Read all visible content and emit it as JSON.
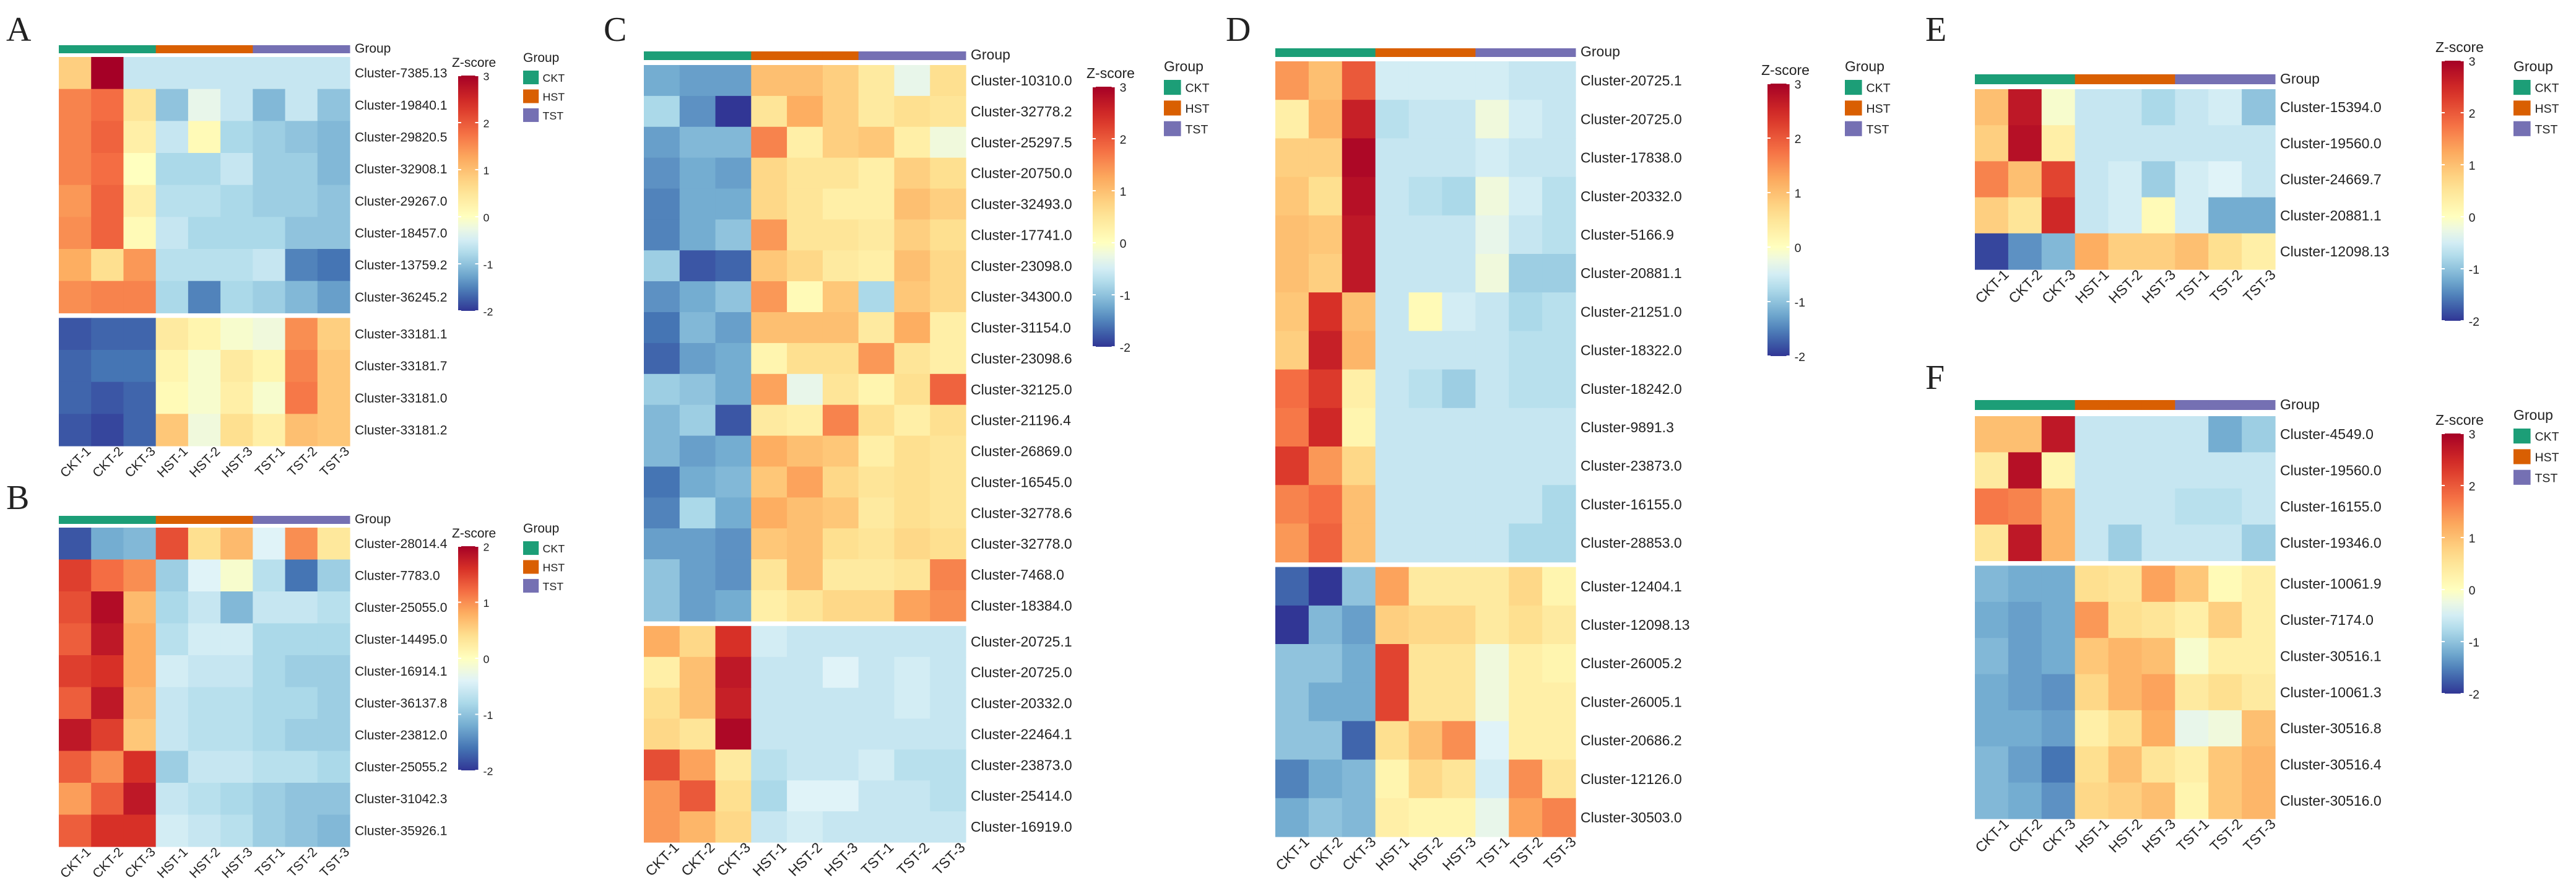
{
  "legend_common": {
    "zscore_title": "Z-score",
    "group_title": "Group",
    "groups": [
      "CKT",
      "HST",
      "TST"
    ],
    "group_colors": [
      "#1c9e77",
      "#d95f02",
      "#7570b3"
    ],
    "track_label": "Group"
  },
  "samples": [
    "CKT-1",
    "CKT-2",
    "CKT-3",
    "HST-1",
    "HST-2",
    "HST-3",
    "TST-1",
    "TST-2",
    "TST-3"
  ],
  "chart_data": [
    {
      "type": "heatmap",
      "panel": "A",
      "zmin": -2,
      "zmax": 3,
      "ticks": [
        -2,
        -1,
        0,
        1,
        2,
        3
      ],
      "rows": [
        "Cluster-7385.13",
        "Cluster-19840.1",
        "Cluster-29820.5",
        "Cluster-32908.1",
        "Cluster-29267.0",
        "Cluster-18457.0",
        "Cluster-13759.2",
        "Cluster-36245.2",
        "Cluster-33181.1",
        "Cluster-33181.7",
        "Cluster-33181.0",
        "Cluster-33181.2"
      ],
      "gaps_after": [
        7
      ],
      "values": [
        [
          0.8,
          3.0,
          -0.6,
          -0.6,
          -0.6,
          -0.6,
          -0.6,
          -0.6,
          -0.6
        ],
        [
          1.6,
          1.8,
          0.5,
          -1.0,
          -0.3,
          -0.6,
          -1.1,
          -0.6,
          -1.0
        ],
        [
          1.6,
          1.9,
          0.3,
          -0.6,
          0.1,
          -0.8,
          -0.9,
          -1.0,
          -1.1
        ],
        [
          1.6,
          1.8,
          0.0,
          -0.8,
          -0.8,
          -0.6,
          -0.9,
          -0.9,
          -1.1
        ],
        [
          1.4,
          1.9,
          0.3,
          -0.7,
          -0.7,
          -0.8,
          -0.9,
          -0.9,
          -1.0
        ],
        [
          1.5,
          1.9,
          0.1,
          -0.6,
          -0.8,
          -0.8,
          -0.8,
          -1.0,
          -1.0
        ],
        [
          1.2,
          0.6,
          1.4,
          -0.7,
          -0.7,
          -0.7,
          -0.6,
          -1.5,
          -1.6
        ],
        [
          1.5,
          1.6,
          1.6,
          -0.8,
          -1.5,
          -0.8,
          -0.9,
          -1.1,
          -1.3
        ],
        [
          -1.8,
          -1.7,
          -1.7,
          0.4,
          0.2,
          -0.1,
          -0.2,
          1.5,
          0.8
        ],
        [
          -1.7,
          -1.6,
          -1.6,
          0.2,
          -0.1,
          0.4,
          0.2,
          1.6,
          0.9
        ],
        [
          -1.7,
          -1.8,
          -1.7,
          0.1,
          -0.1,
          0.3,
          -0.1,
          1.7,
          0.9
        ],
        [
          -1.8,
          -1.9,
          -1.7,
          0.9,
          -0.2,
          0.6,
          0.3,
          1.0,
          0.9
        ]
      ]
    },
    {
      "type": "heatmap",
      "panel": "B",
      "zmin": -2,
      "zmax": 2,
      "ticks": [
        -2,
        -1,
        0,
        1,
        2
      ],
      "rows": [
        "Cluster-28014.4",
        "Cluster-7783.0",
        "Cluster-25055.0",
        "Cluster-14495.0",
        "Cluster-16914.1",
        "Cluster-36137.8",
        "Cluster-23812.0",
        "Cluster-25055.2",
        "Cluster-31042.3",
        "Cluster-35926.1"
      ],
      "gaps_after": [],
      "values": [
        [
          -1.8,
          -1.2,
          -1.1,
          1.4,
          0.4,
          0.7,
          -0.4,
          1.0,
          0.3
        ],
        [
          1.5,
          1.2,
          1.0,
          -0.9,
          -0.4,
          -0.1,
          -0.7,
          -1.6,
          -0.9
        ],
        [
          1.4,
          1.9,
          0.7,
          -0.8,
          -0.6,
          -1.1,
          -0.6,
          -0.6,
          -0.7
        ],
        [
          1.3,
          1.8,
          0.8,
          -0.7,
          -0.5,
          -0.5,
          -0.8,
          -0.8,
          -0.8
        ],
        [
          1.5,
          1.6,
          0.8,
          -0.5,
          -0.6,
          -0.6,
          -0.8,
          -0.9,
          -0.9
        ],
        [
          1.3,
          1.8,
          0.7,
          -0.6,
          -0.7,
          -0.7,
          -0.8,
          -0.8,
          -0.9
        ],
        [
          1.8,
          1.5,
          0.6,
          -0.6,
          -0.7,
          -0.7,
          -0.8,
          -0.9,
          -0.9
        ],
        [
          1.3,
          1.0,
          1.6,
          -0.9,
          -0.6,
          -0.6,
          -0.7,
          -0.7,
          -0.8
        ],
        [
          0.9,
          1.3,
          1.8,
          -0.6,
          -0.7,
          -0.8,
          -0.9,
          -1.0,
          -1.0
        ],
        [
          1.3,
          1.6,
          1.6,
          -0.5,
          -0.6,
          -0.7,
          -0.9,
          -1.0,
          -1.1
        ]
      ]
    },
    {
      "type": "heatmap",
      "panel": "C",
      "zmin": -2,
      "zmax": 3,
      "ticks": [
        -2,
        -1,
        0,
        1,
        2,
        3
      ],
      "rows": [
        "Cluster-10310.0",
        "Cluster-32778.2",
        "Cluster-25297.5",
        "Cluster-20750.0",
        "Cluster-32493.0",
        "Cluster-17741.0",
        "Cluster-23098.0",
        "Cluster-34300.0",
        "Cluster-31154.0",
        "Cluster-23098.6",
        "Cluster-32125.0",
        "Cluster-21196.4",
        "Cluster-26869.0",
        "Cluster-16545.0",
        "Cluster-32778.6",
        "Cluster-32778.0",
        "Cluster-7468.0",
        "Cluster-18384.0",
        "Cluster-20725.1",
        "Cluster-20725.0",
        "Cluster-20332.0",
        "Cluster-22464.1",
        "Cluster-23873.0",
        "Cluster-25414.0",
        "Cluster-16919.0"
      ],
      "gaps_after": [
        17
      ],
      "values": [
        [
          -1.2,
          -1.3,
          -1.3,
          1.0,
          1.0,
          0.8,
          0.4,
          -0.3,
          0.6
        ],
        [
          -0.8,
          -1.4,
          -2.0,
          0.5,
          1.2,
          0.8,
          0.4,
          0.6,
          0.5
        ],
        [
          -1.3,
          -1.1,
          -1.1,
          1.6,
          0.3,
          0.8,
          0.9,
          0.3,
          -0.2
        ],
        [
          -1.4,
          -1.2,
          -1.3,
          0.7,
          0.5,
          0.5,
          0.3,
          0.8,
          0.6
        ],
        [
          -1.5,
          -1.2,
          -1.2,
          0.7,
          0.5,
          0.3,
          0.3,
          1.0,
          0.8
        ],
        [
          -1.5,
          -1.2,
          -1.0,
          1.4,
          0.5,
          0.5,
          0.4,
          0.8,
          0.6
        ],
        [
          -0.9,
          -1.8,
          -1.7,
          0.9,
          0.7,
          0.4,
          0.3,
          1.0,
          0.7
        ],
        [
          -1.4,
          -1.2,
          -1.0,
          1.4,
          0.1,
          0.9,
          -0.8,
          0.9,
          0.7
        ],
        [
          -1.6,
          -1.1,
          -1.3,
          1.0,
          1.0,
          1.0,
          0.4,
          1.2,
          0.3
        ],
        [
          -1.7,
          -1.3,
          -1.2,
          0.2,
          0.6,
          0.6,
          1.4,
          0.5,
          0.3
        ],
        [
          -0.9,
          -1.0,
          -1.2,
          1.3,
          -0.3,
          0.5,
          0.2,
          0.6,
          1.9
        ],
        [
          -1.1,
          -0.9,
          -1.8,
          0.4,
          0.3,
          1.6,
          0.6,
          0.3,
          0.6
        ],
        [
          -1.1,
          -1.3,
          -1.2,
          1.2,
          1.0,
          0.9,
          0.3,
          0.6,
          0.5
        ],
        [
          -1.6,
          -1.2,
          -1.1,
          0.9,
          1.3,
          0.7,
          0.5,
          0.6,
          0.5
        ],
        [
          -1.5,
          -0.8,
          -1.2,
          1.2,
          1.0,
          0.9,
          0.4,
          0.6,
          0.5
        ],
        [
          -1.3,
          -1.3,
          -1.4,
          0.9,
          1.0,
          0.6,
          0.5,
          0.7,
          0.6
        ],
        [
          -1.0,
          -1.3,
          -1.4,
          0.5,
          1.0,
          0.4,
          0.4,
          0.5,
          1.6
        ],
        [
          -1.0,
          -1.3,
          -1.2,
          0.3,
          0.5,
          0.7,
          0.7,
          1.3,
          1.5
        ],
        [
          1.2,
          0.7,
          2.4,
          -0.5,
          -0.6,
          -0.6,
          -0.6,
          -0.6,
          -0.6
        ],
        [
          0.3,
          1.0,
          2.7,
          -0.6,
          -0.6,
          -0.4,
          -0.6,
          -0.5,
          -0.6
        ],
        [
          0.6,
          1.0,
          2.6,
          -0.6,
          -0.6,
          -0.6,
          -0.6,
          -0.5,
          -0.6
        ],
        [
          0.7,
          0.5,
          2.9,
          -0.6,
          -0.6,
          -0.6,
          -0.6,
          -0.6,
          -0.6
        ],
        [
          2.1,
          1.3,
          0.4,
          -0.7,
          -0.6,
          -0.6,
          -0.5,
          -0.7,
          -0.7
        ],
        [
          1.4,
          2.0,
          0.6,
          -0.8,
          -0.4,
          -0.4,
          -0.6,
          -0.6,
          -0.7
        ],
        [
          1.4,
          1.1,
          0.7,
          -0.6,
          -0.5,
          -0.6,
          -0.6,
          -0.6,
          -0.6
        ]
      ]
    },
    {
      "type": "heatmap",
      "panel": "D",
      "zmin": -2,
      "zmax": 3,
      "ticks": [
        -2,
        -1,
        0,
        1,
        2,
        3
      ],
      "rows": [
        "Cluster-20725.1",
        "Cluster-20725.0",
        "Cluster-17838.0",
        "Cluster-20332.0",
        "Cluster-5166.9",
        "Cluster-20881.1",
        "Cluster-21251.0",
        "Cluster-18322.0",
        "Cluster-18242.0",
        "Cluster-9891.3",
        "Cluster-23873.0",
        "Cluster-16155.0",
        "Cluster-28853.0",
        "Cluster-12404.1",
        "Cluster-12098.13",
        "Cluster-26005.2",
        "Cluster-26005.1",
        "Cluster-20686.2",
        "Cluster-12126.0",
        "Cluster-30503.0"
      ],
      "gaps_after": [
        12
      ],
      "values": [
        [
          1.4,
          1.0,
          2.0,
          -0.5,
          -0.5,
          -0.5,
          -0.5,
          -0.6,
          -0.6
        ],
        [
          0.3,
          1.1,
          2.6,
          -0.7,
          -0.6,
          -0.6,
          -0.2,
          -0.5,
          -0.6
        ],
        [
          0.8,
          0.8,
          2.9,
          -0.6,
          -0.6,
          -0.6,
          -0.5,
          -0.6,
          -0.6
        ],
        [
          0.9,
          0.6,
          2.8,
          -0.6,
          -0.7,
          -0.8,
          -0.2,
          -0.5,
          -0.7
        ],
        [
          1.0,
          0.9,
          2.7,
          -0.6,
          -0.6,
          -0.6,
          -0.3,
          -0.6,
          -0.7
        ],
        [
          1.0,
          0.8,
          2.7,
          -0.6,
          -0.6,
          -0.6,
          -0.2,
          -0.9,
          -0.9
        ],
        [
          0.9,
          2.4,
          1.0,
          -0.6,
          0.1,
          -0.5,
          -0.6,
          -0.8,
          -0.7
        ],
        [
          0.8,
          2.6,
          1.1,
          -0.6,
          -0.6,
          -0.6,
          -0.6,
          -0.7,
          -0.7
        ],
        [
          1.8,
          2.3,
          0.3,
          -0.6,
          -0.7,
          -0.9,
          -0.6,
          -0.7,
          -0.7
        ],
        [
          1.7,
          2.5,
          0.2,
          -0.6,
          -0.6,
          -0.6,
          -0.6,
          -0.6,
          -0.6
        ],
        [
          2.3,
          1.4,
          0.7,
          -0.6,
          -0.6,
          -0.6,
          -0.6,
          -0.6,
          -0.6
        ],
        [
          1.6,
          1.8,
          1.0,
          -0.6,
          -0.6,
          -0.6,
          -0.6,
          -0.6,
          -0.8
        ],
        [
          1.4,
          1.9,
          1.0,
          -0.6,
          -0.6,
          -0.6,
          -0.6,
          -0.8,
          -0.8
        ],
        [
          -1.7,
          -2.0,
          -1.0,
          1.3,
          0.4,
          0.4,
          0.4,
          0.7,
          0.2
        ],
        [
          -2.0,
          -1.1,
          -1.3,
          0.8,
          0.7,
          0.7,
          0.4,
          0.6,
          0.4
        ],
        [
          -1.0,
          -1.0,
          -1.2,
          2.2,
          0.5,
          0.5,
          -0.2,
          0.3,
          0.2
        ],
        [
          -1.0,
          -1.2,
          -1.2,
          2.2,
          0.5,
          0.5,
          -0.2,
          0.3,
          0.3
        ],
        [
          -1.0,
          -1.0,
          -1.7,
          0.6,
          1.0,
          1.5,
          -0.4,
          0.3,
          0.3
        ],
        [
          -1.5,
          -1.2,
          -1.1,
          0.2,
          0.7,
          0.5,
          -0.5,
          1.5,
          0.5
        ],
        [
          -1.2,
          -1.0,
          -1.1,
          0.3,
          0.2,
          0.2,
          -0.3,
          1.3,
          1.6
        ]
      ]
    },
    {
      "type": "heatmap",
      "panel": "E",
      "zmin": -2,
      "zmax": 3,
      "ticks": [
        -2,
        -1,
        0,
        1,
        2,
        3
      ],
      "rows": [
        "Cluster-15394.0",
        "Cluster-19560.0",
        "Cluster-24669.7",
        "Cluster-20881.1",
        "Cluster-12098.13"
      ],
      "gaps_after": [],
      "values": [
        [
          1.0,
          2.7,
          -0.1,
          -0.6,
          -0.6,
          -0.8,
          -0.6,
          -0.5,
          -1.0
        ],
        [
          0.8,
          2.8,
          0.3,
          -0.6,
          -0.6,
          -0.6,
          -0.6,
          -0.6,
          -0.6
        ],
        [
          1.6,
          1.0,
          2.2,
          -0.6,
          -0.5,
          -0.9,
          -0.5,
          -0.4,
          -0.6
        ],
        [
          0.8,
          0.5,
          2.5,
          -0.6,
          -0.5,
          0.1,
          -0.5,
          -1.2,
          -1.2
        ],
        [
          -1.9,
          -1.4,
          -1.1,
          1.2,
          0.8,
          0.8,
          1.0,
          0.6,
          0.3
        ]
      ]
    },
    {
      "type": "heatmap",
      "panel": "F",
      "zmin": -2,
      "zmax": 3,
      "ticks": [
        -2,
        -1,
        0,
        1,
        2,
        3
      ],
      "rows": [
        "Cluster-4549.0",
        "Cluster-19560.0",
        "Cluster-16155.0",
        "Cluster-19346.0",
        "Cluster-10061.9",
        "Cluster-7174.0",
        "Cluster-30516.1",
        "Cluster-10061.3",
        "Cluster-30516.8",
        "Cluster-30516.4",
        "Cluster-30516.0"
      ],
      "gaps_after": [
        3
      ],
      "values": [
        [
          1.0,
          1.0,
          2.7,
          -0.6,
          -0.6,
          -0.6,
          -0.6,
          -1.2,
          -0.9
        ],
        [
          0.4,
          2.8,
          0.2,
          -0.6,
          -0.6,
          -0.6,
          -0.6,
          -0.6,
          -0.6
        ],
        [
          1.7,
          1.6,
          1.1,
          -0.6,
          -0.6,
          -0.6,
          -0.7,
          -0.7,
          -0.6
        ],
        [
          0.5,
          2.7,
          1.1,
          -0.6,
          -0.9,
          -0.6,
          -0.6,
          -0.6,
          -0.9
        ],
        [
          -1.1,
          -1.2,
          -1.2,
          0.6,
          0.5,
          1.3,
          0.9,
          0.1,
          0.3
        ],
        [
          -1.2,
          -1.3,
          -1.2,
          1.4,
          0.6,
          0.5,
          0.3,
          0.8,
          0.3
        ],
        [
          -1.1,
          -1.3,
          -1.2,
          0.9,
          1.1,
          1.0,
          -0.1,
          0.3,
          0.3
        ],
        [
          -1.2,
          -1.3,
          -1.4,
          0.7,
          1.1,
          1.3,
          0.4,
          0.6,
          0.4
        ],
        [
          -1.2,
          -1.2,
          -1.3,
          0.3,
          0.6,
          1.2,
          -0.3,
          -0.2,
          1.0
        ],
        [
          -1.1,
          -1.3,
          -1.6,
          0.6,
          1.0,
          0.5,
          0.3,
          0.9,
          1.1
        ],
        [
          -1.1,
          -1.2,
          -1.4,
          0.7,
          0.8,
          1.0,
          0.2,
          0.9,
          1.1
        ]
      ]
    }
  ]
}
